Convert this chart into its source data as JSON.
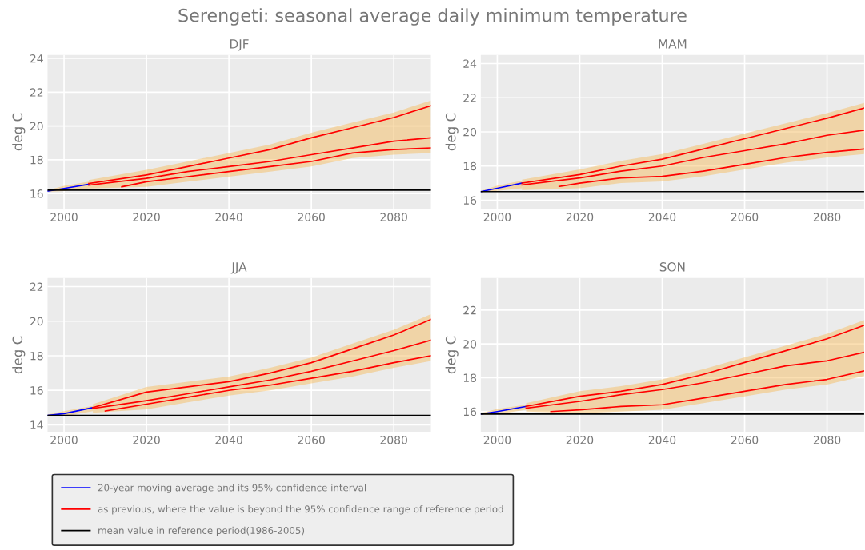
{
  "chart_data": [
    {
      "type": "line",
      "title": "DJF",
      "ylabel": "deg C",
      "annotations": [
        "Serengeti: seasonal average daily minimum temperature"
      ],
      "xlim": [
        1996,
        2089
      ],
      "xticks": [
        2000,
        2020,
        2040,
        2060,
        2080
      ],
      "ylim": [
        15.1,
        24.2
      ],
      "yticks": [
        16,
        18,
        20,
        22,
        24
      ],
      "grid": true,
      "legend": "bottom",
      "ref_lines": [
        {
          "axis": "y",
          "value": 16.2,
          "label": "mean value in reference period(1986-2005)",
          "color": "#000000"
        }
      ],
      "series": [
        {
          "name": "20-year moving average and its 95% confidence interval",
          "color": "#0000ff",
          "x": [
            1996,
            2000,
            2006
          ],
          "values": [
            16.15,
            16.3,
            16.55
          ],
          "lower": [
            16.1,
            16.15,
            16.3
          ],
          "upper": [
            16.2,
            16.45,
            16.7
          ]
        },
        {
          "name": "as previous, where the value is beyond the 95% confidence range of reference period",
          "color": "#ff0000",
          "x": [
            2006,
            2020,
            2030,
            2040,
            2050,
            2060,
            2070,
            2080,
            2089
          ],
          "values": [
            16.6,
            17.1,
            17.6,
            18.1,
            18.6,
            19.3,
            19.9,
            20.5,
            21.2
          ]
        },
        {
          "color": "#ff0000",
          "x": [
            2006,
            2020,
            2030,
            2040,
            2050,
            2060,
            2070,
            2080,
            2089
          ],
          "values": [
            16.5,
            16.9,
            17.3,
            17.6,
            17.9,
            18.3,
            18.7,
            19.1,
            19.3
          ],
          "lower": [
            16.3,
            16.4,
            16.7,
            17.0,
            17.3,
            17.6,
            18.1,
            18.3,
            18.4
          ],
          "upper": [
            16.8,
            17.4,
            17.9,
            18.4,
            18.9,
            19.6,
            20.2,
            20.8,
            21.5
          ]
        },
        {
          "color": "#ff0000",
          "x": [
            2014,
            2020,
            2030,
            2040,
            2050,
            2060,
            2070,
            2080,
            2089
          ],
          "values": [
            16.4,
            16.7,
            17.0,
            17.3,
            17.6,
            17.9,
            18.4,
            18.6,
            18.7
          ]
        }
      ]
    },
    {
      "type": "line",
      "title": "MAM",
      "ylabel": "deg C",
      "xlim": [
        1996,
        2089
      ],
      "xticks": [
        2000,
        2020,
        2040,
        2060,
        2080
      ],
      "ylim": [
        15.5,
        24.5
      ],
      "yticks": [
        16,
        18,
        20,
        22,
        24
      ],
      "grid": true,
      "ref_lines": [
        {
          "axis": "y",
          "value": 16.5,
          "color": "#000000"
        }
      ],
      "series": [
        {
          "color": "#0000ff",
          "x": [
            1996,
            2000,
            2006
          ],
          "values": [
            16.5,
            16.7,
            17.0
          ],
          "lower": [
            16.45,
            16.55,
            16.7
          ],
          "upper": [
            16.55,
            16.85,
            17.15
          ]
        },
        {
          "color": "#ff0000",
          "x": [
            2006,
            2020,
            2030,
            2040,
            2050,
            2060,
            2070,
            2080,
            2089
          ],
          "values": [
            17.0,
            17.5,
            18.0,
            18.4,
            19.0,
            19.6,
            20.2,
            20.8,
            21.4
          ]
        },
        {
          "color": "#ff0000",
          "x": [
            2006,
            2020,
            2030,
            2040,
            2050,
            2060,
            2070,
            2080,
            2089
          ],
          "values": [
            16.9,
            17.3,
            17.7,
            18.0,
            18.5,
            18.9,
            19.3,
            19.8,
            20.1
          ],
          "lower": [
            16.6,
            16.7,
            17.0,
            17.1,
            17.4,
            17.8,
            18.2,
            18.5,
            18.7
          ],
          "upper": [
            17.2,
            17.8,
            18.3,
            18.7,
            19.3,
            19.9,
            20.5,
            21.1,
            21.7
          ]
        },
        {
          "color": "#ff0000",
          "x": [
            2015,
            2020,
            2030,
            2040,
            2050,
            2060,
            2070,
            2080,
            2089
          ],
          "values": [
            16.8,
            17.0,
            17.3,
            17.4,
            17.7,
            18.1,
            18.5,
            18.8,
            19.0
          ]
        }
      ]
    },
    {
      "type": "line",
      "title": "JJA",
      "ylabel": "deg C",
      "xlim": [
        1996,
        2089
      ],
      "xticks": [
        2000,
        2020,
        2040,
        2060,
        2080
      ],
      "ylim": [
        13.6,
        22.5
      ],
      "yticks": [
        14,
        16,
        18,
        20,
        22
      ],
      "grid": true,
      "ref_lines": [
        {
          "axis": "y",
          "value": 14.55,
          "color": "#000000"
        }
      ],
      "series": [
        {
          "color": "#0000ff",
          "x": [
            1996,
            2000,
            2007
          ],
          "values": [
            14.55,
            14.65,
            15.0
          ],
          "lower": [
            14.5,
            14.5,
            14.8
          ],
          "upper": [
            14.6,
            14.8,
            15.1
          ]
        },
        {
          "color": "#ff0000",
          "x": [
            2007,
            2020,
            2030,
            2040,
            2050,
            2060,
            2070,
            2080,
            2089
          ],
          "values": [
            15.0,
            15.9,
            16.2,
            16.5,
            17.0,
            17.6,
            18.4,
            19.2,
            20.1
          ]
        },
        {
          "color": "#ff0000",
          "x": [
            2007,
            2020,
            2030,
            2040,
            2050,
            2060,
            2070,
            2080,
            2089
          ],
          "values": [
            14.95,
            15.4,
            15.8,
            16.2,
            16.6,
            17.1,
            17.7,
            18.3,
            18.9
          ],
          "lower": [
            14.7,
            14.9,
            15.3,
            15.7,
            16.0,
            16.4,
            16.8,
            17.3,
            17.7
          ],
          "upper": [
            15.2,
            16.2,
            16.5,
            16.8,
            17.3,
            17.9,
            18.7,
            19.5,
            20.4
          ]
        },
        {
          "color": "#ff0000",
          "x": [
            2010,
            2020,
            2030,
            2040,
            2050,
            2060,
            2070,
            2080,
            2089
          ],
          "values": [
            14.8,
            15.2,
            15.6,
            16.0,
            16.3,
            16.7,
            17.1,
            17.6,
            18.0
          ]
        }
      ]
    },
    {
      "type": "line",
      "title": "SON",
      "ylabel": "deg C",
      "xlim": [
        1996,
        2089
      ],
      "xticks": [
        2000,
        2020,
        2040,
        2060,
        2080
      ],
      "ylim": [
        14.8,
        23.9
      ],
      "yticks": [
        16,
        18,
        20,
        22
      ],
      "grid": true,
      "ref_lines": [
        {
          "axis": "y",
          "value": 15.85,
          "color": "#000000"
        }
      ],
      "series": [
        {
          "color": "#0000ff",
          "x": [
            1996,
            2000,
            2007
          ],
          "values": [
            15.85,
            16.0,
            16.3
          ],
          "lower": [
            15.8,
            15.85,
            16.1
          ],
          "upper": [
            15.9,
            16.15,
            16.4
          ]
        },
        {
          "color": "#ff0000",
          "x": [
            2007,
            2020,
            2030,
            2040,
            2050,
            2060,
            2070,
            2080,
            2089
          ],
          "values": [
            16.3,
            16.9,
            17.2,
            17.6,
            18.2,
            18.9,
            19.6,
            20.3,
            21.1
          ]
        },
        {
          "color": "#ff0000",
          "x": [
            2007,
            2020,
            2030,
            2040,
            2050,
            2060,
            2070,
            2080,
            2089
          ],
          "values": [
            16.2,
            16.6,
            17.0,
            17.3,
            17.7,
            18.2,
            18.7,
            19.0,
            19.5
          ],
          "lower": [
            16.0,
            15.9,
            16.0,
            16.1,
            16.5,
            16.9,
            17.3,
            17.6,
            18.1
          ],
          "upper": [
            16.5,
            17.2,
            17.5,
            17.9,
            18.5,
            19.2,
            19.9,
            20.6,
            21.4
          ]
        },
        {
          "color": "#ff0000",
          "x": [
            2013,
            2020,
            2030,
            2040,
            2050,
            2060,
            2070,
            2080,
            2089
          ],
          "values": [
            16.0,
            16.1,
            16.3,
            16.4,
            16.8,
            17.2,
            17.6,
            17.9,
            18.4
          ]
        }
      ]
    }
  ]
}
